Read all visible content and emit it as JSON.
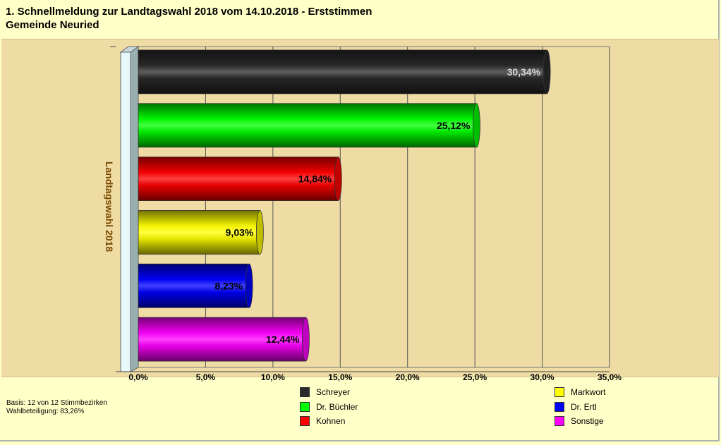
{
  "header": {
    "title": "1. Schnellmeldung zur Landtagswahl 2018 vom 14.10.2018 - Erststimmen",
    "subtitle": "Gemeinde Neuried"
  },
  "footer": {
    "basis": "Basis: 12 von 12 Stimmbezirken",
    "turnout": "Wahlbeteiligung: 83,26%"
  },
  "chart_data": {
    "type": "bar",
    "orientation": "horizontal",
    "category_axis_label": "Landtagswahl 2018",
    "xlim": [
      0,
      35
    ],
    "ticks": [
      0,
      5,
      10,
      15,
      20,
      25,
      30,
      35
    ],
    "tick_labels": [
      "0,0%",
      "5,0%",
      "10,0%",
      "15,0%",
      "20,0%",
      "25,0%",
      "30,0%",
      "35,0%"
    ],
    "grid": true,
    "legend_position": "bottom",
    "series": [
      {
        "name": "Schreyer",
        "value": 30.34,
        "label": "30,34%",
        "color": "#2a2a2a"
      },
      {
        "name": "Dr. Büchler",
        "value": 25.12,
        "label": "25,12%",
        "color": "#00ff00"
      },
      {
        "name": "Kohnen",
        "value": 14.84,
        "label": "14,84%",
        "color": "#ff0000"
      },
      {
        "name": "Markwort",
        "value": 9.03,
        "label": "9,03%",
        "color": "#ffff00"
      },
      {
        "name": "Dr. Ertl",
        "value": 8.23,
        "label": "8,23%",
        "color": "#0000ff"
      },
      {
        "name": "Sonstige",
        "value": 12.44,
        "label": "12,44%",
        "color": "#ff00ff"
      }
    ]
  }
}
